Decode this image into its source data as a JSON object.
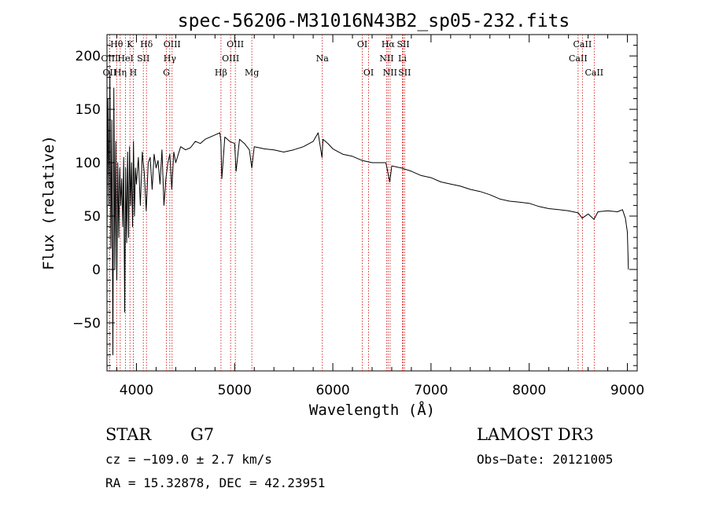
{
  "chart_data": {
    "type": "line",
    "title": "spec-56206-M31016N43B2_sp05-232.fits",
    "xlabel": "Wavelength (Å)",
    "ylabel": "Flux (relative)",
    "xlim": [
      3700,
      9100
    ],
    "ylim": [
      -95,
      220
    ],
    "x_ticks": [
      4000,
      5000,
      6000,
      7000,
      8000,
      9000
    ],
    "y_ticks": [
      -50,
      0,
      50,
      100,
      150,
      200
    ],
    "x_tick_labels": [
      "4000",
      "5000",
      "6000",
      "7000",
      "8000",
      "9000"
    ],
    "y_tick_labels": [
      "−50",
      "0",
      "50",
      "100",
      "150",
      "200"
    ],
    "line_color": "#000000",
    "marker_color": "#cc0000",
    "series": [
      {
        "name": "flux",
        "x": [
          3700,
          3710,
          3720,
          3730,
          3740,
          3750,
          3760,
          3770,
          3780,
          3790,
          3800,
          3810,
          3820,
          3830,
          3840,
          3850,
          3860,
          3870,
          3880,
          3890,
          3900,
          3910,
          3920,
          3930,
          3940,
          3950,
          3960,
          3970,
          3980,
          3990,
          4000,
          4020,
          4040,
          4060,
          4080,
          4100,
          4120,
          4140,
          4160,
          4180,
          4200,
          4220,
          4240,
          4260,
          4280,
          4300,
          4320,
          4340,
          4360,
          4380,
          4400,
          4450,
          4500,
          4550,
          4600,
          4650,
          4700,
          4750,
          4800,
          4850,
          4860,
          4870,
          4900,
          4950,
          5000,
          5015,
          5050,
          5100,
          5150,
          5175,
          5200,
          5250,
          5300,
          5400,
          5500,
          5600,
          5700,
          5800,
          5850,
          5890,
          5900,
          5950,
          6000,
          6100,
          6200,
          6300,
          6400,
          6500,
          6540,
          6563,
          6580,
          6600,
          6700,
          6800,
          6900,
          7000,
          7100,
          7200,
          7300,
          7400,
          7500,
          7600,
          7700,
          7800,
          7900,
          8000,
          8100,
          8200,
          8300,
          8400,
          8500,
          8540,
          8600,
          8660,
          8700,
          8800,
          8900,
          8950,
          8980,
          9000,
          9010
        ],
        "y": [
          30,
          160,
          60,
          185,
          20,
          140,
          -80,
          170,
          0,
          120,
          -10,
          100,
          30,
          95,
          60,
          85,
          40,
          105,
          -40,
          95,
          25,
          110,
          30,
          115,
          60,
          100,
          40,
          120,
          50,
          95,
          80,
          105,
          60,
          110,
          90,
          55,
          100,
          105,
          75,
          108,
          95,
          102,
          80,
          112,
          60,
          85,
          100,
          108,
          75,
          110,
          100,
          115,
          112,
          114,
          120,
          118,
          122,
          124,
          126,
          128,
          120,
          85,
          124,
          120,
          118,
          92,
          122,
          118,
          112,
          95,
          115,
          114,
          113,
          112,
          110,
          112,
          115,
          120,
          128,
          105,
          122,
          118,
          113,
          108,
          106,
          102,
          100,
          100,
          100,
          90,
          82,
          97,
          95,
          92,
          88,
          86,
          82,
          80,
          78,
          75,
          73,
          70,
          66,
          64,
          63,
          62,
          59,
          57,
          56,
          55,
          53,
          48,
          52,
          47,
          54,
          55,
          54,
          56,
          48,
          35,
          0
        ]
      }
    ],
    "line_markers": [
      {
        "label": "Hθ",
        "wavelength": 3798,
        "row": 0
      },
      {
        "label": "K",
        "wavelength": 3934,
        "row": 0
      },
      {
        "label": "Hδ",
        "wavelength": 4102,
        "row": 0
      },
      {
        "label": "OIII",
        "wavelength": 4363,
        "row": 0
      },
      {
        "label": "OIII",
        "wavelength": 5007,
        "row": 0
      },
      {
        "label": "OI",
        "wavelength": 6300,
        "row": 0
      },
      {
        "label": "Hα",
        "wavelength": 6563,
        "row": 0
      },
      {
        "label": "SII",
        "wavelength": 6717,
        "row": 0
      },
      {
        "label": "CaII",
        "wavelength": 8542,
        "row": 0
      },
      {
        "label": "OIII",
        "wavelength": 3727,
        "row": 1
      },
      {
        "label": "HeI",
        "wavelength": 3889,
        "row": 1
      },
      {
        "label": "SII",
        "wavelength": 4070,
        "row": 1
      },
      {
        "label": "Hγ",
        "wavelength": 4340,
        "row": 1
      },
      {
        "label": "OIII",
        "wavelength": 4959,
        "row": 1
      },
      {
        "label": "Na",
        "wavelength": 5893,
        "row": 1
      },
      {
        "label": "NII",
        "wavelength": 6548,
        "row": 1
      },
      {
        "label": "Li",
        "wavelength": 6708,
        "row": 1
      },
      {
        "label": "CaII",
        "wavelength": 8498,
        "row": 1
      },
      {
        "label": "OII",
        "wavelength": 3727,
        "row": 2
      },
      {
        "label": "Hη",
        "wavelength": 3835,
        "row": 2
      },
      {
        "label": "H",
        "wavelength": 3968,
        "row": 2
      },
      {
        "label": "G",
        "wavelength": 4305,
        "row": 2
      },
      {
        "label": "Hβ",
        "wavelength": 4861,
        "row": 2
      },
      {
        "label": "Mg",
        "wavelength": 5175,
        "row": 2
      },
      {
        "label": "OI",
        "wavelength": 6364,
        "row": 2
      },
      {
        "label": "NII",
        "wavelength": 6583,
        "row": 2
      },
      {
        "label": "SII",
        "wavelength": 6731,
        "row": 2
      },
      {
        "label": "CaII",
        "wavelength": 8662,
        "row": 2
      }
    ]
  },
  "info": {
    "object_class": "STAR",
    "subclass": "G7",
    "survey": "LAMOST DR3",
    "redshift_line": "cz = −109.0 ± 2.7 km/s",
    "obs_date_line": "Obs−Date: 20121005",
    "coords_line": "RA =  15.32878, DEC =  42.23951"
  }
}
